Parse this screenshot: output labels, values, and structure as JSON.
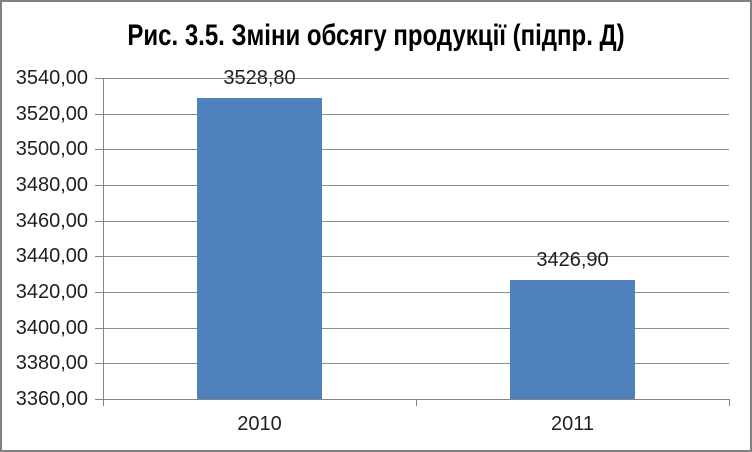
{
  "chart_data": {
    "type": "bar",
    "title": "Рис. 3.5. Зміни обсягу продукції (підпр. Д)",
    "categories": [
      "2010",
      "2011"
    ],
    "values": [
      3528.8,
      3426.9
    ],
    "value_labels": [
      "3528,80",
      "3426,90"
    ],
    "xlabel": "",
    "ylabel": "",
    "ylim": [
      3360,
      3540
    ],
    "ytick_step": 20,
    "ytick_labels": [
      "3360,00",
      "3380,00",
      "3400,00",
      "3420,00",
      "3440,00",
      "3460,00",
      "3480,00",
      "3500,00",
      "3520,00",
      "3540,00"
    ],
    "grid": true,
    "legend": "none",
    "colors": {
      "bar": "#4F81BD",
      "gridline": "#8C8C8C",
      "axis": "#848484",
      "frame_border": "#808080",
      "background": "#FFFFFF",
      "text": "#1F1F1F",
      "title_text": "#000000"
    }
  }
}
